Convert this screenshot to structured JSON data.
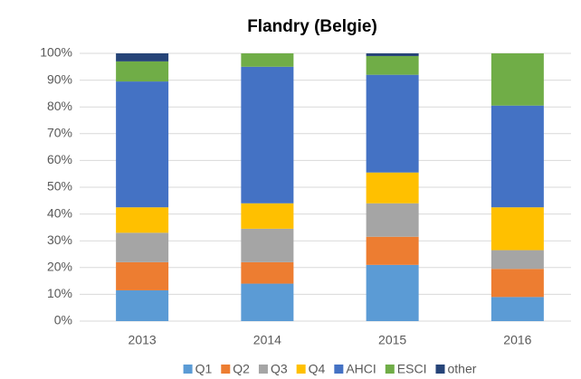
{
  "chart_data": {
    "type": "stacked_bar",
    "title": "Flandry (Belgie)",
    "categories": [
      "2013",
      "2014",
      "2015",
      "2016"
    ],
    "series": [
      {
        "name": "Q1",
        "color": "#5b9bd5",
        "values": [
          11.5,
          14,
          21,
          9
        ]
      },
      {
        "name": "Q2",
        "color": "#ed7d31",
        "values": [
          10.5,
          8,
          10.5,
          10.5
        ]
      },
      {
        "name": "Q3",
        "color": "#a5a5a5",
        "values": [
          11,
          12.5,
          12.5,
          7
        ]
      },
      {
        "name": "Q4",
        "color": "#ffc000",
        "values": [
          9.5,
          9.5,
          11.5,
          16
        ]
      },
      {
        "name": "AHCI",
        "color": "#4472c4",
        "values": [
          47,
          51,
          36.5,
          38
        ]
      },
      {
        "name": "ESCI",
        "color": "#70ad47",
        "values": [
          7.5,
          5,
          7,
          19.5
        ]
      },
      {
        "name": "other",
        "color": "#264478",
        "values": [
          3,
          0,
          1,
          0
        ]
      }
    ],
    "ylim": [
      0,
      100
    ],
    "yticks": [
      {
        "value": 0,
        "label": "0%"
      },
      {
        "value": 10,
        "label": "10%"
      },
      {
        "value": 20,
        "label": "20%"
      },
      {
        "value": 30,
        "label": "30%"
      },
      {
        "value": 40,
        "label": "40%"
      },
      {
        "value": 50,
        "label": "50%"
      },
      {
        "value": 60,
        "label": "60%"
      },
      {
        "value": 70,
        "label": "70%"
      },
      {
        "value": 80,
        "label": "80%"
      },
      {
        "value": 90,
        "label": "90%"
      },
      {
        "value": 100,
        "label": "100%"
      }
    ],
    "grid": true,
    "legend": "bottom"
  }
}
